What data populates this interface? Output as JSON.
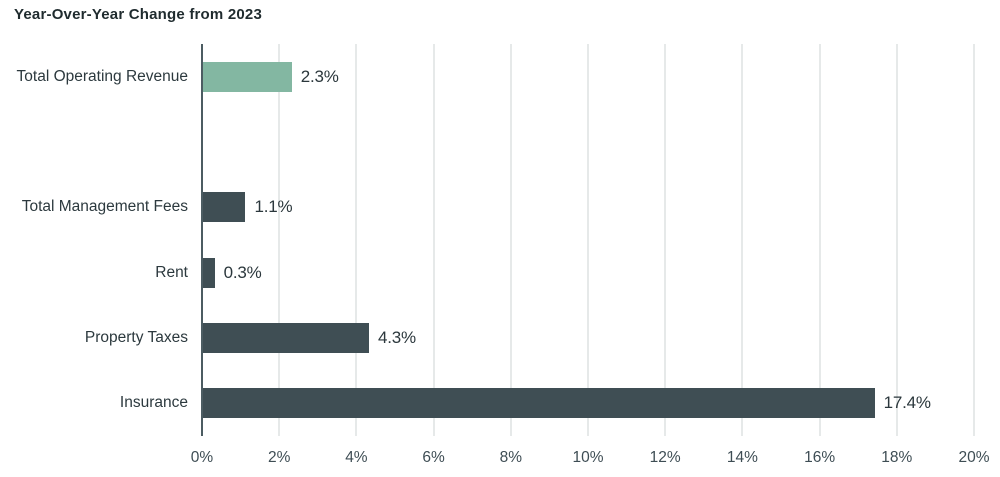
{
  "chart_data": {
    "type": "bar",
    "orientation": "horizontal",
    "title": "Year-Over-Year Change from 2023",
    "categories": [
      "Total Operating Revenue",
      "Total Management Fees",
      "Rent",
      "Property Taxes",
      "Insurance"
    ],
    "values": [
      2.3,
      1.1,
      0.3,
      4.3,
      17.4
    ],
    "bars": [
      {
        "label": "Total Operating Revenue",
        "value": 2.3,
        "display": "2.3%",
        "slot": 0,
        "color_key": "highlight"
      },
      {
        "label": "Total Management Fees",
        "value": 1.1,
        "display": "1.1%",
        "slot": 2,
        "color_key": "default"
      },
      {
        "label": "Rent",
        "value": 0.3,
        "display": "0.3%",
        "slot": 3,
        "color_key": "default"
      },
      {
        "label": "Property Taxes",
        "value": 4.3,
        "display": "4.3%",
        "slot": 4,
        "color_key": "default"
      },
      {
        "label": "Insurance",
        "value": 17.4,
        "display": "17.4%",
        "slot": 5,
        "color_key": "default"
      }
    ],
    "row_slots": 6,
    "x_axis": {
      "min": 0,
      "max": 20,
      "step": 2,
      "tick_labels": [
        "0%",
        "2%",
        "4%",
        "6%",
        "8%",
        "10%",
        "12%",
        "14%",
        "16%",
        "18%",
        "20%"
      ]
    },
    "grid": true,
    "legend": false,
    "colors": {
      "highlight": "#83b7a2",
      "default": "#3f4e54",
      "axis_line": "#4c5c62",
      "gridline": "#e6e9e9",
      "title_text": "#1f2b2e",
      "category_text": "#2c393e",
      "tick_text": "#3e4d54",
      "value_text": "#2b373c",
      "background": "#ffffff"
    }
  }
}
